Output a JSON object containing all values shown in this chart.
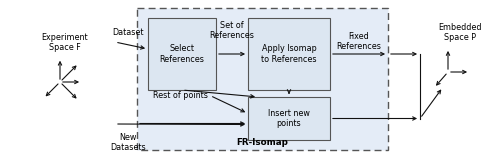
{
  "fig_width": 5.0,
  "fig_height": 1.65,
  "dpi": 100,
  "bg_color": "#ffffff",
  "box_fill": "#dce6f1",
  "box_edge": "#555555",
  "fr_fill": "#e4ecf7",
  "fr_edge": "#555555",
  "arrow_color": "#111111",
  "font_size": 5.8,
  "labels": {
    "experiment": "Experiment\nSpace F",
    "embedded": "Embedded\nSpace P",
    "dataset": "Dataset",
    "new_datasets": "New\nDatasets",
    "set_of_ref": "Set of\nReferences",
    "fixed_ref": "Fixed\nReferences",
    "rest_of_points": "Rest of points",
    "fr_isomap": "FR-Isomap",
    "select_ref": "Select\nReferences",
    "apply_isomap": "Apply Isomap\nto References",
    "insert_new": "Insert new\npoints"
  }
}
